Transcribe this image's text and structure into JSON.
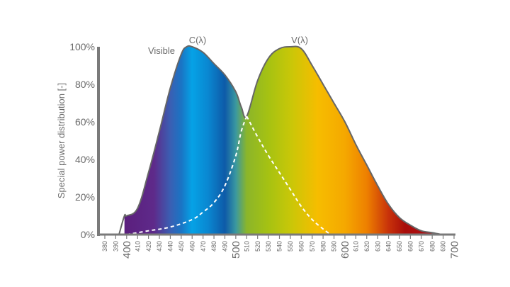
{
  "chart_data": {
    "type": "area",
    "title": "",
    "xlabel": "",
    "ylabel": "Special power distribution [-]",
    "xlim": [
      380,
      700
    ],
    "ylim": [
      0,
      100
    ],
    "grid": false,
    "y_ticks": [
      "0%",
      "20%",
      "40%",
      "60%",
      "80%",
      "100%"
    ],
    "x_ticks_major": [
      "400",
      "500",
      "600",
      "700"
    ],
    "x_ticks_minor": [
      "380",
      "390",
      "410",
      "420",
      "430",
      "440",
      "450",
      "460",
      "470",
      "480",
      "490",
      "510",
      "520",
      "530",
      "540",
      "550",
      "560",
      "570",
      "580",
      "590",
      "610",
      "620",
      "630",
      "640",
      "650",
      "660",
      "670",
      "680",
      "690"
    ],
    "annotations": [
      {
        "text": "Visible",
        "x": 425,
        "y": 98
      },
      {
        "text": "C(λ)",
        "x": 462,
        "y": 104
      },
      {
        "text": "V(λ)",
        "x": 555,
        "y": 104
      }
    ],
    "series": [
      {
        "name": "Visible envelope",
        "style": "filled spectrum gradient, gray outline",
        "x": [
          393,
          398,
          400,
          410,
          420,
          430,
          440,
          450,
          455,
          460,
          470,
          480,
          490,
          500,
          505,
          510,
          520,
          530,
          540,
          550,
          560,
          570,
          580,
          590,
          600,
          610,
          620,
          630,
          640,
          650,
          660,
          670,
          680,
          690,
          700
        ],
        "values": [
          0,
          10,
          10,
          14,
          33,
          55,
          78,
          96,
          100,
          100,
          97,
          91,
          85,
          76,
          68,
          63,
          82,
          94,
          99,
          100,
          99,
          90,
          80,
          70,
          60,
          48,
          37,
          26,
          16,
          9,
          5,
          2,
          1,
          0,
          0
        ]
      },
      {
        "name": "C(λ)",
        "style": "solid curve (left peak)",
        "x": [
          398,
          410,
          420,
          430,
          440,
          450,
          455,
          460,
          470,
          480,
          490,
          500,
          505,
          510,
          520,
          530,
          540,
          550,
          560,
          570,
          580,
          587
        ],
        "values": [
          10,
          14,
          33,
          55,
          78,
          96,
          100,
          100,
          97,
          91,
          85,
          76,
          68,
          63,
          52,
          42,
          33,
          24,
          15,
          8,
          3,
          0
        ]
      },
      {
        "name": "V(λ)",
        "style": "dashed white curve (right peak)",
        "x": [
          400,
          420,
          440,
          460,
          470,
          480,
          490,
          500,
          505,
          510,
          520,
          530,
          540,
          550,
          560,
          570,
          580,
          590,
          600,
          620,
          640,
          660,
          680,
          690
        ],
        "values": [
          0,
          2,
          4,
          8,
          12,
          17,
          26,
          42,
          55,
          63,
          82,
          94,
          99,
          100,
          99,
          90,
          80,
          70,
          60,
          37,
          16,
          5,
          1,
          0
        ]
      }
    ],
    "colors": {
      "axis": "#7a7a7a",
      "outline": "#666666",
      "text": "#6b6b6b",
      "dash": "#ffffff",
      "spectrum": [
        {
          "nm": 400,
          "color": "#5b1f7e"
        },
        {
          "nm": 425,
          "color": "#5e2a8a"
        },
        {
          "nm": 440,
          "color": "#3a5fb3"
        },
        {
          "nm": 450,
          "color": "#1a74c4"
        },
        {
          "nm": 460,
          "color": "#05a2e6"
        },
        {
          "nm": 475,
          "color": "#0a86d0"
        },
        {
          "nm": 490,
          "color": "#0d5aa8"
        },
        {
          "nm": 500,
          "color": "#3a98a0"
        },
        {
          "nm": 510,
          "color": "#8bb52a"
        },
        {
          "nm": 530,
          "color": "#a6c212"
        },
        {
          "nm": 550,
          "color": "#c8c708"
        },
        {
          "nm": 575,
          "color": "#f6bd00"
        },
        {
          "nm": 600,
          "color": "#f5a800"
        },
        {
          "nm": 620,
          "color": "#ee8000"
        },
        {
          "nm": 640,
          "color": "#c8320a"
        },
        {
          "nm": 655,
          "color": "#a80d0a"
        },
        {
          "nm": 690,
          "color": "#b0101a"
        }
      ]
    }
  }
}
